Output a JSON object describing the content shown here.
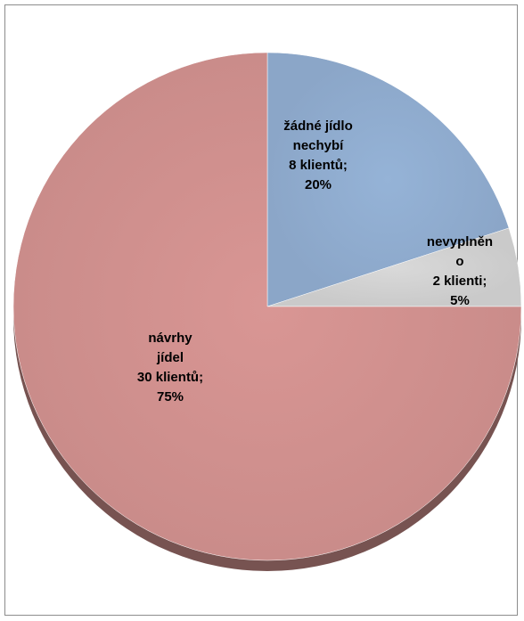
{
  "chart_data": {
    "type": "pie",
    "title": "",
    "slices": [
      {
        "name": "žádné jídlo nechybí",
        "value": 8,
        "percent": 20,
        "label_lines": [
          "žádné jídlo",
          "nechybí",
          "8 klientů;",
          "20%"
        ],
        "color": "#95b3d7"
      },
      {
        "name": "nevyplněno",
        "value": 2,
        "percent": 5,
        "label_lines": [
          "nevyplněn",
          "o",
          "2 klienti;",
          "5%"
        ],
        "color": "#d9d9d9"
      },
      {
        "name": "návrhy jídel",
        "value": 30,
        "percent": 75,
        "label_lines": [
          "návrhy",
          "jídel",
          "30 klientů;",
          "75%"
        ],
        "color": "#d99694"
      }
    ],
    "start": "12 o'clock",
    "direction": "clockwise",
    "legend": "none"
  }
}
